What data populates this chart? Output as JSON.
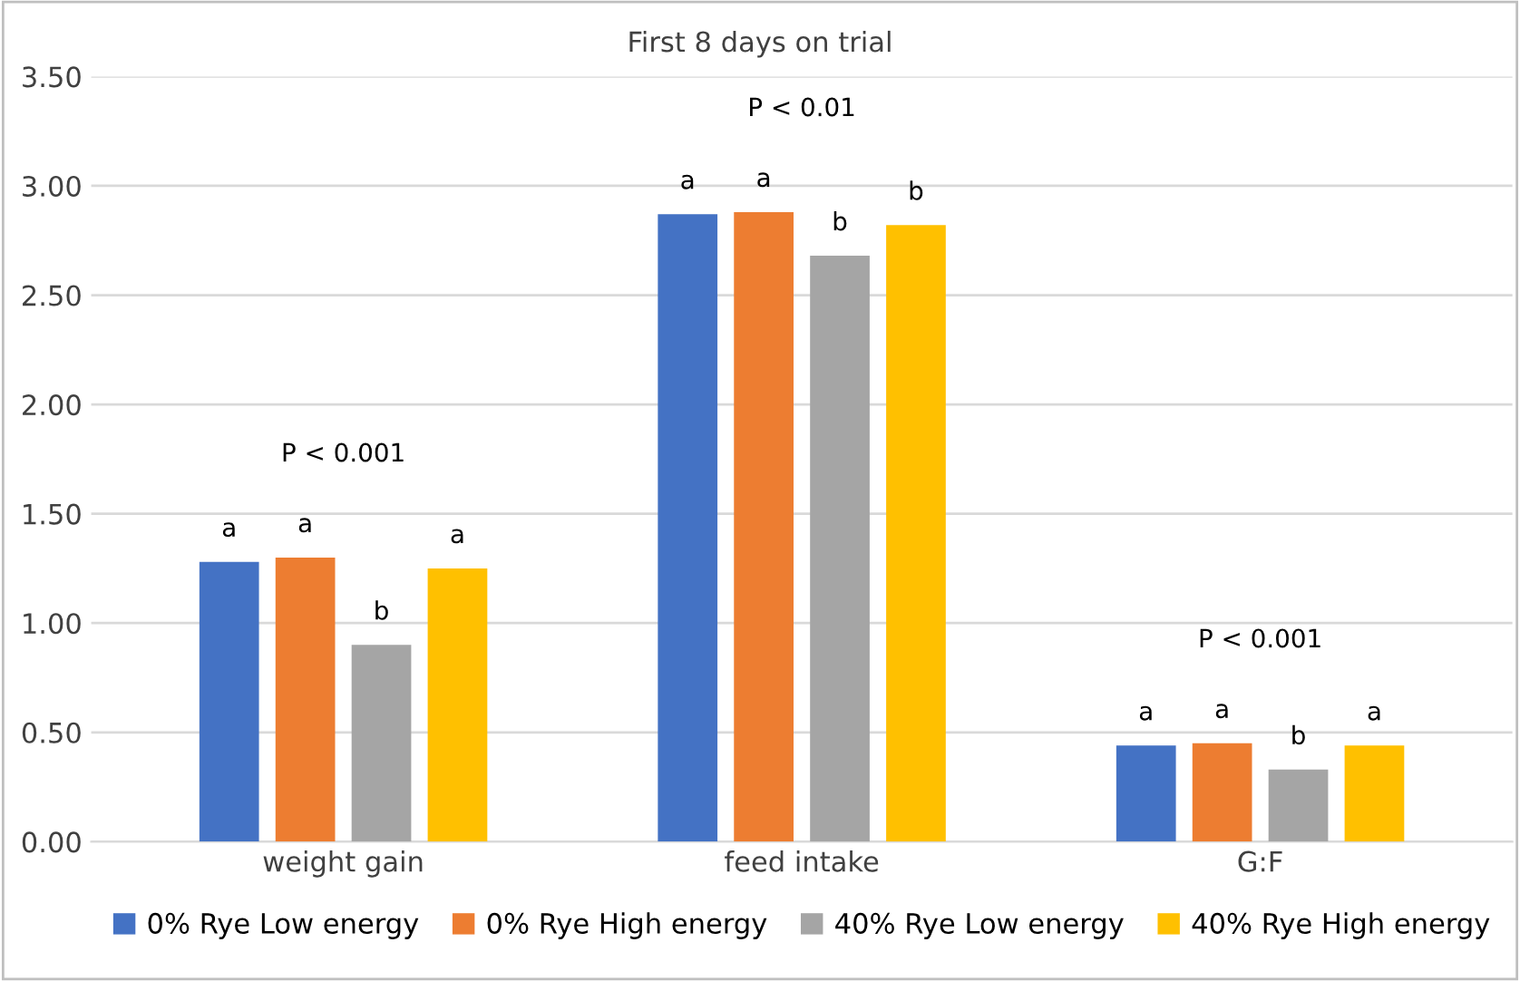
{
  "chart_data": {
    "type": "bar",
    "title": "First 8 days on trial",
    "categories": [
      "weight gain",
      "feed intake",
      "G:F"
    ],
    "series": [
      {
        "name": "0% Rye Low energy",
        "color": "#4472c4",
        "values": [
          1.28,
          2.87,
          0.44
        ],
        "value_labels": [
          "a",
          "a",
          "a"
        ]
      },
      {
        "name": "0% Rye High energy",
        "color": "#ed7d31",
        "values": [
          1.3,
          2.88,
          0.45
        ],
        "value_labels": [
          "a",
          "a",
          "a"
        ]
      },
      {
        "name": "40% Rye Low energy",
        "color": "#a5a5a5",
        "values": [
          0.9,
          2.68,
          0.33
        ],
        "value_labels": [
          "b",
          "b",
          "b"
        ]
      },
      {
        "name": "40% Rye High energy",
        "color": "#ffc000",
        "values": [
          1.25,
          2.82,
          0.44
        ],
        "value_labels": [
          "a",
          "b",
          "a"
        ]
      }
    ],
    "ylim": [
      0,
      3.5
    ],
    "yticks": [
      {
        "value": 0,
        "label": "0.00"
      },
      {
        "value": 0.5,
        "label": "0.50"
      },
      {
        "value": 1,
        "label": "1.00"
      },
      {
        "value": 1.5,
        "label": "1.50"
      },
      {
        "value": 2,
        "label": "2.00"
      },
      {
        "value": 2.5,
        "label": "2.50"
      },
      {
        "value": 3,
        "label": "3.00"
      },
      {
        "value": 3.5,
        "label": "3.50"
      }
    ],
    "grid": "y",
    "legend": "bottom",
    "annotations": [
      "P < 0.001",
      "P < 0.01",
      "P < 0.001"
    ]
  }
}
